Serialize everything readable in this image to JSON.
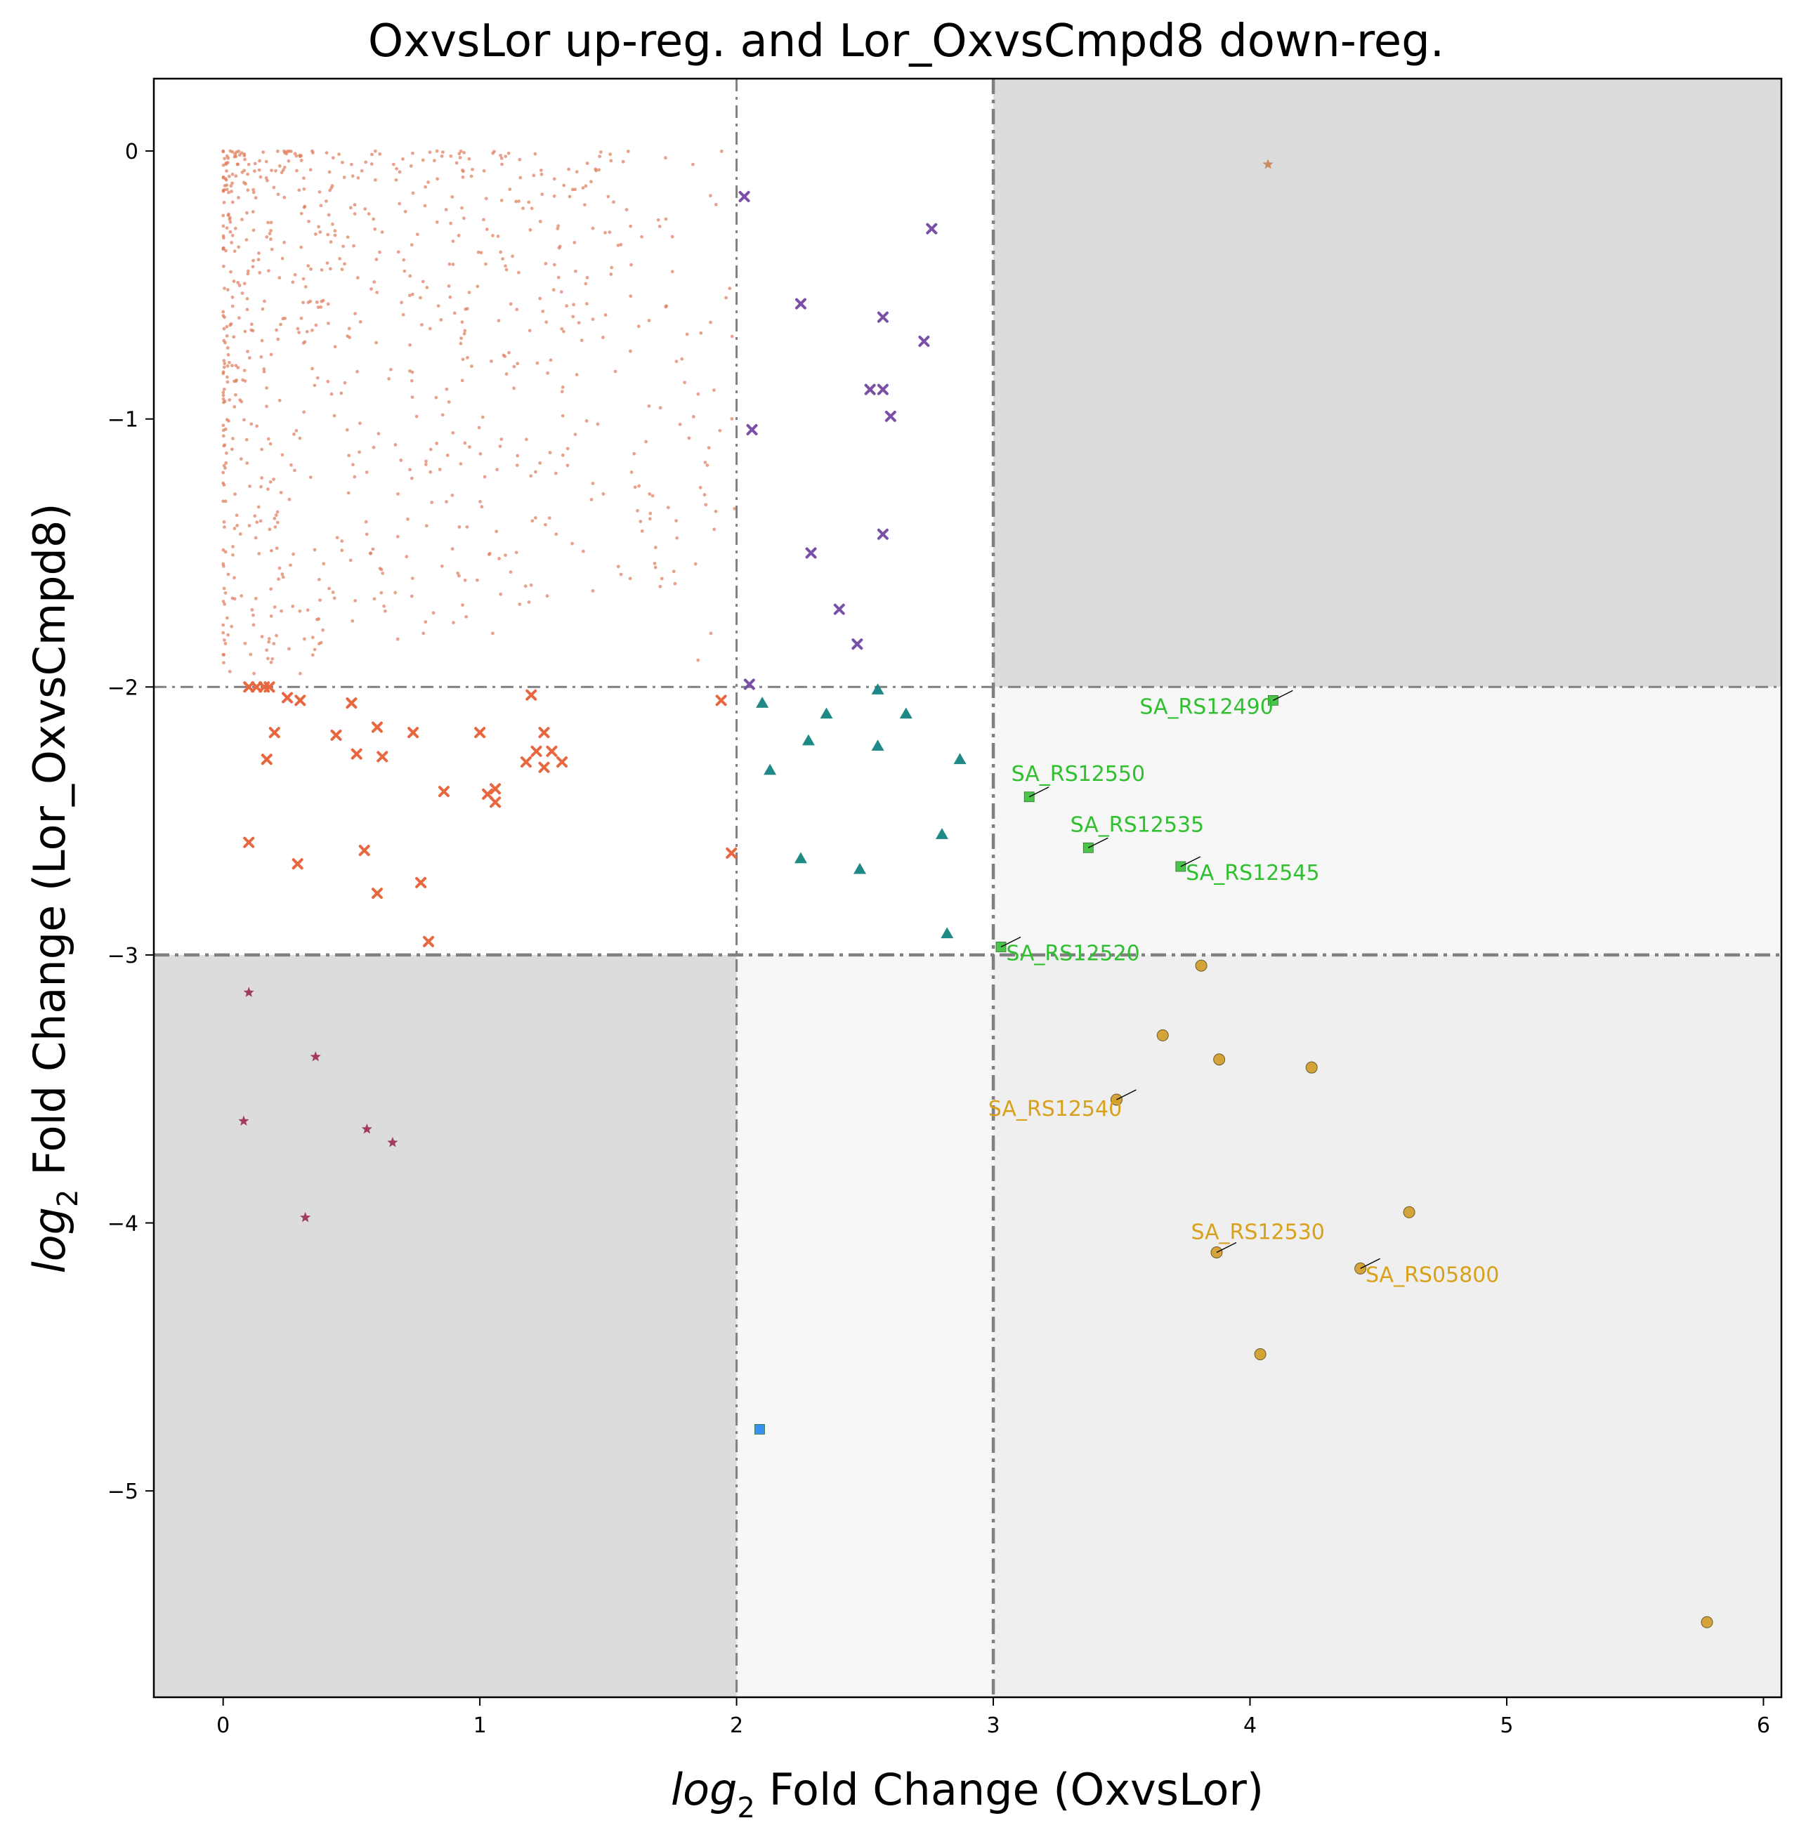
{
  "chart_data": {
    "type": "scatter",
    "title": "OxvsLor up-reg. and Lor_OxvsCmpd8 down-reg.",
    "xlabel_italic": "log",
    "xlabel_sub": "2",
    "xlabel_rest": " Fold Change (OxvsLor)",
    "ylabel_italic": "log",
    "ylabel_sub": "2",
    "ylabel_rest": " Fold Change (Lor_OxvsCmpd8)",
    "xlim": [
      -0.27,
      6.07
    ],
    "ylim": [
      -5.77,
      0.27
    ],
    "xticks": [
      0,
      1,
      2,
      3,
      4,
      5,
      6
    ],
    "yticks": [
      0,
      -1,
      -2,
      -3,
      -4,
      -5
    ],
    "xtick_labels": [
      "0",
      "1",
      "2",
      "3",
      "4",
      "5",
      "6"
    ],
    "ytick_labels": [
      "0",
      "−1",
      "−2",
      "−3",
      "−4",
      "−5"
    ],
    "thresholds": {
      "x_minor": 2,
      "x_major": 3,
      "y_minor": -2,
      "y_major": -3
    },
    "regions": [
      {
        "x": [
          3,
          6.07
        ],
        "y": [
          -2,
          0.27
        ],
        "color": "#dcdcdc"
      },
      {
        "x": [
          -0.27,
          2
        ],
        "y": [
          -5.77,
          -3
        ],
        "color": "#dcdcdc"
      },
      {
        "x": [
          3,
          6.07
        ],
        "y": [
          -3,
          -2
        ],
        "color": "#f7f7f7"
      },
      {
        "x": [
          2,
          3
        ],
        "y": [
          -5.77,
          -3
        ],
        "color": "#f7f7f7"
      },
      {
        "x": [
          3,
          6.07
        ],
        "y": [
          -5.77,
          -3
        ],
        "color": "#efefef"
      }
    ],
    "background_cloud": {
      "count": 820,
      "color": "#e07b5a",
      "x_range": [
        0,
        2
      ],
      "y_range": [
        -2,
        0
      ],
      "outline_points": [
        [
          0.05,
          -0.02
        ],
        [
          0.1,
          -0.05
        ],
        [
          0.3,
          -0.02
        ],
        [
          0.5,
          -0.05
        ],
        [
          0.7,
          -0.03
        ],
        [
          0.92,
          -0.01
        ],
        [
          1.1,
          -0.02
        ],
        [
          1.35,
          -0.17
        ],
        [
          1.5,
          -0.17
        ],
        [
          1.83,
          -0.05
        ],
        [
          1.92,
          -0.2
        ],
        [
          1.75,
          -0.45
        ],
        [
          1.78,
          -1.02
        ],
        [
          1.62,
          -1.25
        ],
        [
          1.88,
          -1.32
        ],
        [
          1.9,
          -1.8
        ],
        [
          1.85,
          -1.9
        ],
        [
          1.55,
          -1.58
        ],
        [
          1.2,
          -1.62
        ],
        [
          1.05,
          -1.8
        ],
        [
          0.78,
          -1.8
        ],
        [
          0.3,
          -1.95
        ],
        [
          0.12,
          -1.95
        ],
        [
          0.02,
          -1.58
        ],
        [
          0,
          -1.2
        ],
        [
          0,
          -0.6
        ]
      ]
    },
    "series": [
      {
        "marker": "x",
        "color": "#e8673f",
        "points": [
          [
            0.1,
            -2.0
          ],
          [
            0.13,
            -2.0
          ],
          [
            0.16,
            -2.0
          ],
          [
            0.18,
            -2.0
          ],
          [
            0.25,
            -2.04
          ],
          [
            0.3,
            -2.05
          ],
          [
            0.5,
            -2.06
          ],
          [
            0.2,
            -2.17
          ],
          [
            0.17,
            -2.27
          ],
          [
            0.44,
            -2.18
          ],
          [
            0.52,
            -2.25
          ],
          [
            0.6,
            -2.15
          ],
          [
            0.62,
            -2.26
          ],
          [
            0.74,
            -2.17
          ],
          [
            1.0,
            -2.17
          ],
          [
            1.2,
            -2.03
          ],
          [
            1.18,
            -2.28
          ],
          [
            1.22,
            -2.24
          ],
          [
            1.25,
            -2.17
          ],
          [
            1.25,
            -2.3
          ],
          [
            1.28,
            -2.24
          ],
          [
            1.32,
            -2.28
          ],
          [
            0.86,
            -2.39
          ],
          [
            1.03,
            -2.4
          ],
          [
            1.06,
            -2.38
          ],
          [
            1.06,
            -2.43
          ],
          [
            0.1,
            -2.58
          ],
          [
            0.55,
            -2.61
          ],
          [
            0.29,
            -2.66
          ],
          [
            0.77,
            -2.73
          ],
          [
            0.6,
            -2.77
          ],
          [
            0.8,
            -2.95
          ],
          [
            1.94,
            -2.05
          ],
          [
            1.98,
            -2.62
          ]
        ]
      },
      {
        "marker": "x",
        "color": "#7a4fa8",
        "points": [
          [
            2.03,
            -0.17
          ],
          [
            2.76,
            -0.29
          ],
          [
            2.25,
            -0.57
          ],
          [
            2.57,
            -0.62
          ],
          [
            2.73,
            -0.71
          ],
          [
            2.52,
            -0.89
          ],
          [
            2.57,
            -0.89
          ],
          [
            2.6,
            -0.99
          ],
          [
            2.06,
            -1.04
          ],
          [
            2.57,
            -1.43
          ],
          [
            2.29,
            -1.5
          ],
          [
            2.4,
            -1.71
          ],
          [
            2.47,
            -1.84
          ],
          [
            2.05,
            -1.99
          ]
        ]
      },
      {
        "marker": "triangle",
        "color": "#1f8a85",
        "points": [
          [
            2.1,
            -2.06
          ],
          [
            2.55,
            -2.01
          ],
          [
            2.35,
            -2.1
          ],
          [
            2.66,
            -2.1
          ],
          [
            2.28,
            -2.2
          ],
          [
            2.55,
            -2.22
          ],
          [
            2.87,
            -2.27
          ],
          [
            2.13,
            -2.31
          ],
          [
            2.8,
            -2.55
          ],
          [
            2.25,
            -2.64
          ],
          [
            2.48,
            -2.68
          ],
          [
            2.82,
            -2.92
          ]
        ]
      },
      {
        "marker": "square",
        "color": "#4cc44c",
        "points": [
          [
            4.09,
            -2.05
          ],
          [
            3.14,
            -2.41
          ],
          [
            3.37,
            -2.6
          ],
          [
            3.73,
            -2.67
          ],
          [
            3.03,
            -2.97
          ]
        ]
      },
      {
        "marker": "circle",
        "color": "#d4a339",
        "points": [
          [
            3.81,
            -3.04
          ],
          [
            3.66,
            -3.3
          ],
          [
            3.88,
            -3.39
          ],
          [
            4.24,
            -3.42
          ],
          [
            3.48,
            -3.54
          ],
          [
            4.62,
            -3.96
          ],
          [
            3.87,
            -4.11
          ],
          [
            4.43,
            -4.17
          ],
          [
            4.04,
            -4.49
          ],
          [
            5.78,
            -5.49
          ]
        ]
      },
      {
        "marker": "star",
        "color": "#a23b5c",
        "points": [
          [
            0.1,
            -3.14
          ],
          [
            0.36,
            -3.38
          ],
          [
            0.08,
            -3.62
          ],
          [
            0.56,
            -3.65
          ],
          [
            0.66,
            -3.7
          ],
          [
            0.32,
            -3.98
          ]
        ]
      },
      {
        "marker": "square",
        "color": "#3a8ff2",
        "points": [
          [
            2.09,
            -4.77
          ]
        ]
      },
      {
        "marker": "star",
        "color": "#c98b5e",
        "points": [
          [
            4.07,
            -0.05
          ]
        ]
      }
    ],
    "annotations": [
      {
        "text": "SA_RS12490",
        "x": 4.09,
        "y": -2.05,
        "tx": 3.57,
        "ty": -2.1,
        "color": "#2fbf2f",
        "anchor": "start"
      },
      {
        "text": "SA_RS12550",
        "x": 3.14,
        "y": -2.41,
        "tx": 3.07,
        "ty": -2.35,
        "color": "#2fbf2f",
        "anchor": "start"
      },
      {
        "text": "SA_RS12535",
        "x": 3.37,
        "y": -2.6,
        "tx": 3.3,
        "ty": -2.54,
        "color": "#2fbf2f",
        "anchor": "start"
      },
      {
        "text": "SA_RS12545",
        "x": 3.73,
        "y": -2.67,
        "tx": 3.75,
        "ty": -2.72,
        "color": "#2fbf2f",
        "anchor": "start"
      },
      {
        "text": "SA_RS12520",
        "x": 3.03,
        "y": -2.97,
        "tx": 3.05,
        "ty": -3.02,
        "color": "#2fbf2f",
        "anchor": "start"
      },
      {
        "text": "SA_RS12540",
        "x": 3.48,
        "y": -3.54,
        "tx": 2.98,
        "ty": -3.6,
        "color": "#d9a01b",
        "anchor": "start"
      },
      {
        "text": "SA_RS12530",
        "x": 3.87,
        "y": -4.11,
        "tx": 3.77,
        "ty": -4.06,
        "color": "#d9a01b",
        "anchor": "start"
      },
      {
        "text": "SA_RS05800",
        "x": 4.43,
        "y": -4.17,
        "tx": 4.45,
        "ty": -4.22,
        "color": "#d9a01b",
        "anchor": "start"
      }
    ]
  }
}
